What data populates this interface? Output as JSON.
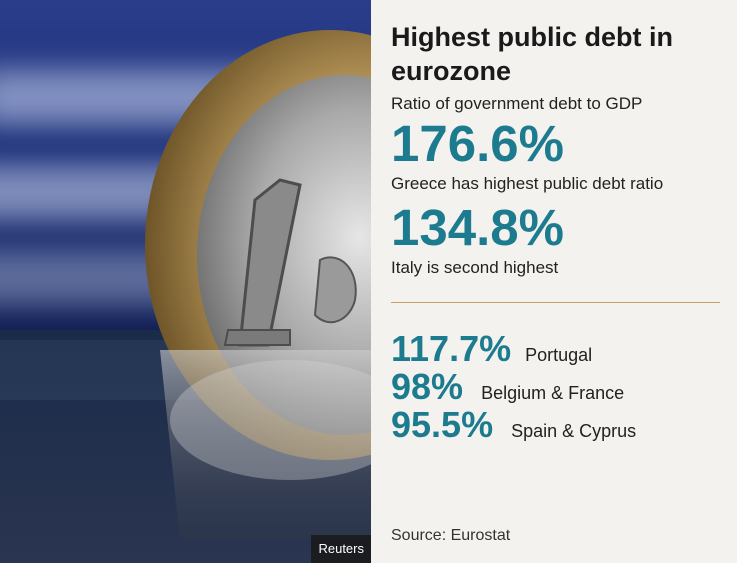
{
  "photo": {
    "credit": "Reuters"
  },
  "panel": {
    "title": "Highest public debt in eurozone",
    "subtitle": "Ratio of government debt to GDP",
    "highlights": [
      {
        "value": "176.6%",
        "description": "Greece has highest public debt ratio"
      },
      {
        "value": "134.8%",
        "description": "Italy is second highest"
      }
    ],
    "rows": [
      {
        "value": "117.7%",
        "label": "Portugal"
      },
      {
        "value": "98%",
        "label": "Belgium & France"
      },
      {
        "value": "95.5%",
        "label": "Spain & Cyprus"
      }
    ],
    "source": "Source: Eurostat"
  },
  "colors": {
    "accent": "#1d7b8f",
    "divider": "#c2a36a",
    "background": "#f4f2ee"
  }
}
